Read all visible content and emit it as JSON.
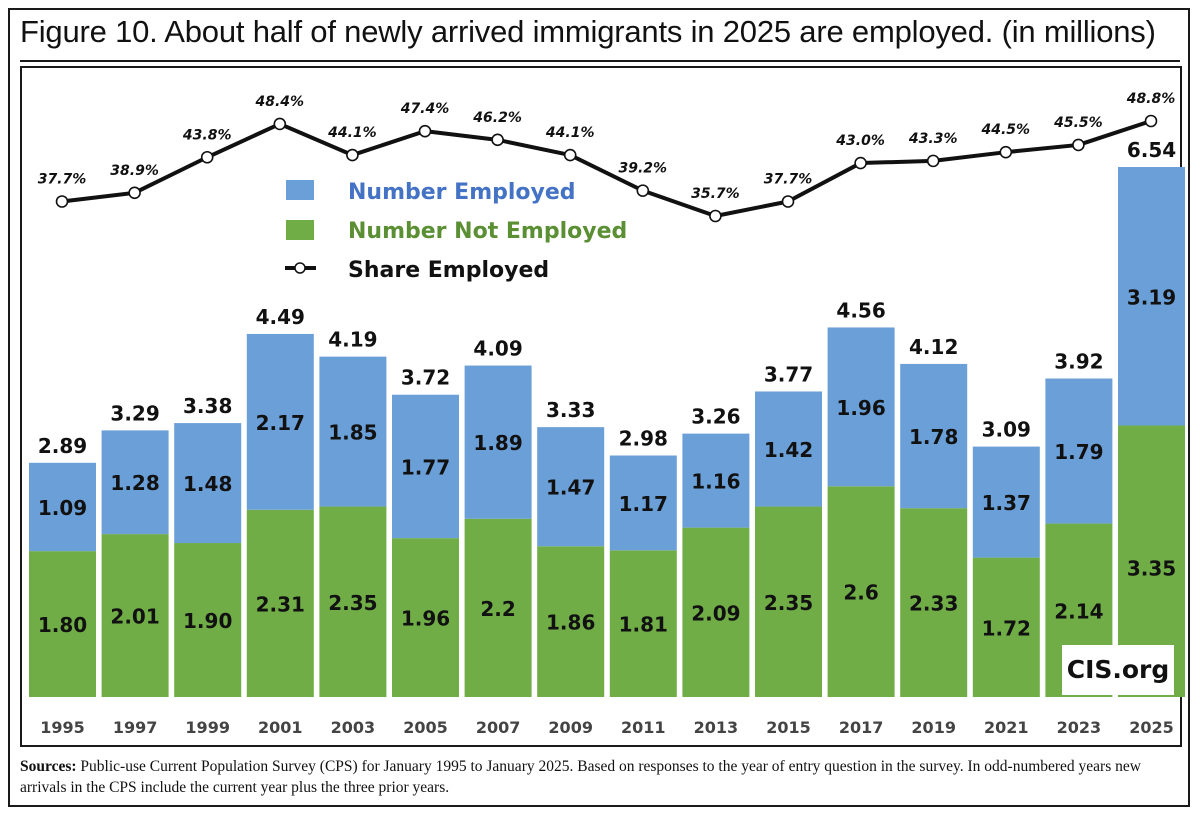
{
  "title": "Figure 10. About half of newly arrived immigrants in 2025 are employed. (in millions)",
  "sources": {
    "label": "Sources:",
    "text": "Public-use Current Population Survey (CPS) for January 1995 to January 2025. Based on responses to the year of entry question in the survey. In odd-numbered years new arrivals in the CPS include the current year plus the three prior years."
  },
  "watermark": "CIS.org",
  "chart_data": {
    "type": "bar",
    "stacked": true,
    "categories": [
      "1995",
      "1997",
      "1999",
      "2001",
      "2003",
      "2005",
      "2007",
      "2009",
      "2011",
      "2013",
      "2015",
      "2017",
      "2019",
      "2021",
      "2023",
      "2025"
    ],
    "series": [
      {
        "name": "Number Not Employed",
        "color": "#70ad47",
        "values": [
          1.8,
          2.01,
          1.9,
          2.31,
          2.35,
          1.96,
          2.2,
          1.86,
          1.81,
          2.09,
          2.35,
          2.6,
          2.33,
          1.72,
          2.14,
          3.35
        ],
        "labels": [
          "1.80",
          "2.01",
          "1.90",
          "2.31",
          "2.35",
          "1.96",
          "2.2",
          "1.86",
          "1.81",
          "2.09",
          "2.35",
          "2.6",
          "2.33",
          "1.72",
          "2.14",
          "3.35"
        ]
      },
      {
        "name": "Number Employed",
        "color": "#6b9fd8",
        "values": [
          1.09,
          1.28,
          1.48,
          2.17,
          1.85,
          1.77,
          1.89,
          1.47,
          1.17,
          1.16,
          1.42,
          1.96,
          1.78,
          1.37,
          1.79,
          3.19
        ],
        "labels": [
          "1.09",
          "1.28",
          "1.48",
          "2.17",
          "1.85",
          "1.77",
          "1.89",
          "1.47",
          "1.17",
          "1.16",
          "1.42",
          "1.96",
          "1.78",
          "1.37",
          "1.79",
          "3.19"
        ]
      }
    ],
    "totals": [
      2.89,
      3.29,
      3.38,
      4.49,
      4.19,
      3.72,
      4.09,
      3.33,
      2.98,
      3.26,
      3.77,
      4.56,
      4.12,
      3.09,
      3.92,
      6.54
    ],
    "total_labels": [
      "2.89",
      "3.29",
      "3.38",
      "4.49",
      "4.19",
      "3.72",
      "4.09",
      "3.33",
      "2.98",
      "3.26",
      "3.77",
      "4.56",
      "4.12",
      "3.09",
      "3.92",
      "6.54"
    ],
    "line": {
      "name": "Share Employed",
      "values": [
        37.7,
        38.9,
        43.8,
        48.4,
        44.1,
        47.4,
        46.2,
        44.1,
        39.2,
        35.7,
        37.7,
        43.0,
        43.3,
        44.5,
        45.5,
        48.8
      ],
      "labels": [
        "37.7%",
        "38.9%",
        "43.8%",
        "48.4%",
        "44.1%",
        "47.4%",
        "46.2%",
        "44.1%",
        "39.2%",
        "35.7%",
        "37.7%",
        "43.0%",
        "43.3%",
        "44.5%",
        "45.5%",
        "48.8%"
      ]
    },
    "legend": {
      "position": "top-left",
      "entries": [
        "Number Employed",
        "Number Not Employed",
        "Share Employed"
      ]
    },
    "ylim": [
      0,
      6.54
    ],
    "grid": false
  }
}
